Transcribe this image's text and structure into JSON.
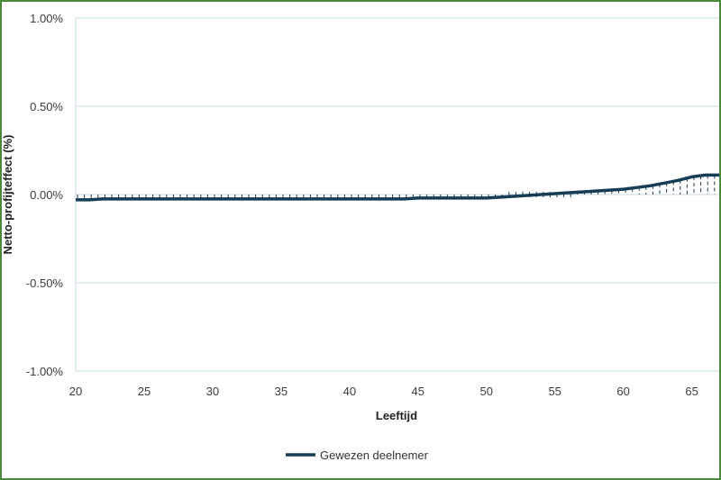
{
  "chart_data": {
    "type": "line",
    "xlabel": "Leeftijd",
    "ylabel": "Netto-profijteffect (%)",
    "xlim": [
      20,
      67
    ],
    "ylim": [
      -1.0,
      1.0
    ],
    "x_ticks": [
      20,
      25,
      30,
      35,
      40,
      45,
      50,
      55,
      60,
      65
    ],
    "x_tick_labels": [
      "20",
      "25",
      "30",
      "35",
      "40",
      "45",
      "50",
      "55",
      "60",
      "65"
    ],
    "y_ticks": [
      1.0,
      0.5,
      0.0,
      -0.5,
      -1.0
    ],
    "y_tick_labels": [
      "1.00%",
      "0.50%",
      "0.00%",
      "-0.50%",
      "-1.00%"
    ],
    "grid": "horizontal",
    "legend_position": "bottom",
    "series": [
      {
        "name": "Gewezen deelnemer",
        "color": "#163d54",
        "x": [
          20,
          21,
          22,
          25,
          30,
          35,
          40,
          44,
          45,
          48,
          50,
          52,
          54,
          55,
          56,
          57,
          58,
          59,
          60,
          61,
          62,
          63,
          64,
          65,
          66,
          67
        ],
        "values": [
          -0.03,
          -0.03,
          -0.025,
          -0.025,
          -0.025,
          -0.025,
          -0.025,
          -0.025,
          -0.02,
          -0.02,
          -0.02,
          -0.01,
          0.0,
          0.005,
          0.01,
          0.015,
          0.02,
          0.025,
          0.03,
          0.04,
          0.05,
          0.065,
          0.08,
          0.1,
          0.11,
          0.11
        ]
      }
    ]
  }
}
